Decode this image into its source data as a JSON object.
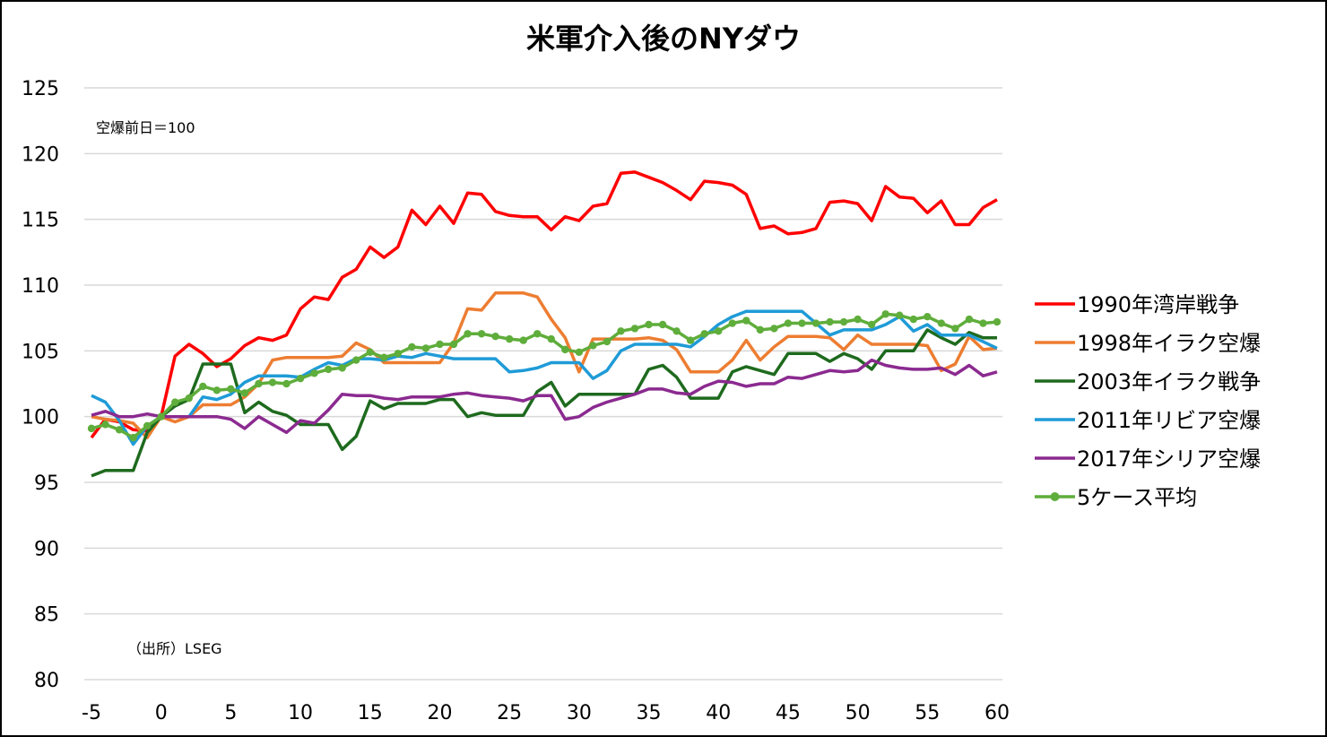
{
  "chart_data": {
    "type": "line",
    "title": "米軍介入後のNYダウ",
    "annotation_top": "空爆前日＝100",
    "annotation_bottom": "（出所）LSEG",
    "xlabel": "",
    "ylabel": "",
    "xlim": [
      -5,
      60
    ],
    "ylim": [
      80,
      125
    ],
    "x_ticks": [
      -5,
      0,
      5,
      10,
      15,
      20,
      25,
      30,
      35,
      40,
      45,
      50,
      55,
      60
    ],
    "y_ticks": [
      80,
      85,
      90,
      95,
      100,
      105,
      110,
      115,
      120,
      125
    ],
    "grid": "horizontal",
    "legend_position": "right",
    "x": [
      -5,
      -4,
      -3,
      -2,
      -1,
      0,
      1,
      2,
      3,
      4,
      5,
      6,
      7,
      8,
      9,
      10,
      11,
      12,
      13,
      14,
      15,
      16,
      17,
      18,
      19,
      20,
      21,
      22,
      23,
      24,
      25,
      26,
      27,
      28,
      29,
      30,
      31,
      32,
      33,
      34,
      35,
      36,
      37,
      38,
      39,
      40,
      41,
      42,
      43,
      44,
      45,
      46,
      47,
      48,
      49,
      50,
      51,
      52,
      53,
      54,
      55,
      56,
      57,
      58,
      59,
      60
    ],
    "series": [
      {
        "name": "1990年湾岸戦争",
        "color": "#ff0000",
        "marker": false,
        "values": [
          98.4,
          99.8,
          99.6,
          99.0,
          98.9,
          100.0,
          104.6,
          105.5,
          104.8,
          103.8,
          104.4,
          105.4,
          106.0,
          105.8,
          106.2,
          108.2,
          109.1,
          108.9,
          110.6,
          111.2,
          112.9,
          112.1,
          112.9,
          115.7,
          114.6,
          116.0,
          114.7,
          117.0,
          116.9,
          115.6,
          115.3,
          115.2,
          115.2,
          114.2,
          115.2,
          114.9,
          116.0,
          116.2,
          118.5,
          118.6,
          118.2,
          117.8,
          117.2,
          116.5,
          117.9,
          117.8,
          117.6,
          116.9,
          114.3,
          114.5,
          113.9,
          114.0,
          114.3,
          116.3,
          116.4,
          116.2,
          114.9,
          117.5,
          116.7,
          116.6,
          115.5,
          116.4,
          114.6,
          114.6,
          115.9,
          116.5
        ]
      },
      {
        "name": "1998年イラク空爆",
        "color": "#ed7d31",
        "marker": false,
        "values": [
          100.0,
          99.8,
          99.7,
          99.5,
          98.4,
          100.0,
          99.6,
          100.0,
          100.9,
          100.9,
          100.9,
          101.5,
          102.5,
          104.3,
          104.5,
          104.5,
          104.5,
          104.5,
          104.6,
          105.6,
          105.1,
          104.1,
          104.1,
          104.1,
          104.1,
          104.1,
          105.6,
          108.2,
          108.1,
          109.4,
          109.4,
          109.4,
          109.1,
          107.4,
          106.0,
          103.4,
          105.9,
          105.9,
          105.9,
          105.9,
          106.0,
          105.8,
          105.1,
          103.4,
          103.4,
          103.4,
          104.3,
          105.8,
          104.3,
          105.3,
          106.1,
          106.1,
          106.1,
          106.0,
          105.1,
          106.2,
          105.5,
          105.5,
          105.5,
          105.5,
          105.4,
          103.5,
          104.0,
          106.1,
          105.1,
          105.2
        ]
      },
      {
        "name": "2003年イラク戦争",
        "color": "#1e6a1e",
        "marker": false,
        "values": [
          95.5,
          95.9,
          95.9,
          95.9,
          98.8,
          100.0,
          100.8,
          101.3,
          104.0,
          104.0,
          104.0,
          100.3,
          101.1,
          100.4,
          100.1,
          99.4,
          99.4,
          99.4,
          97.5,
          98.5,
          101.2,
          100.6,
          101.0,
          101.0,
          101.0,
          101.3,
          101.3,
          100.0,
          100.3,
          100.1,
          100.1,
          100.1,
          101.9,
          102.6,
          100.8,
          101.7,
          101.7,
          101.7,
          101.7,
          101.7,
          103.6,
          103.9,
          103.0,
          101.4,
          101.4,
          101.4,
          103.4,
          103.8,
          103.5,
          103.2,
          104.8,
          104.8,
          104.8,
          104.2,
          104.8,
          104.4,
          103.6,
          105.0,
          105.0,
          105.0,
          106.6,
          106.0,
          105.5,
          106.4,
          106.0,
          106.0
        ]
      },
      {
        "name": "2011年リビア空爆",
        "color": "#1f9bd7",
        "marker": false,
        "values": [
          101.6,
          101.1,
          99.7,
          97.9,
          99.3,
          100.0,
          100.0,
          100.0,
          101.5,
          101.3,
          101.7,
          102.6,
          103.1,
          103.1,
          103.1,
          103.0,
          103.6,
          104.1,
          103.9,
          104.4,
          104.4,
          104.3,
          104.6,
          104.5,
          104.8,
          104.6,
          104.4,
          104.4,
          104.4,
          104.4,
          103.4,
          103.5,
          103.7,
          104.1,
          104.1,
          104.1,
          102.9,
          103.5,
          105.0,
          105.5,
          105.5,
          105.5,
          105.5,
          105.3,
          106.1,
          107.0,
          107.6,
          108.0,
          108.0,
          108.0,
          108.0,
          108.0,
          107.1,
          106.2,
          106.6,
          106.6,
          106.6,
          107.0,
          107.6,
          106.5,
          107.0,
          106.2,
          106.2,
          106.2,
          105.7,
          105.2
        ]
      },
      {
        "name": "2017年シリア空爆",
        "color": "#8b2a90",
        "marker": false,
        "values": [
          100.1,
          100.4,
          100.0,
          100.0,
          100.2,
          100.0,
          100.0,
          100.0,
          100.0,
          100.0,
          99.8,
          99.1,
          100.0,
          99.4,
          98.8,
          99.7,
          99.5,
          100.5,
          101.7,
          101.6,
          101.6,
          101.4,
          101.3,
          101.5,
          101.5,
          101.5,
          101.7,
          101.8,
          101.6,
          101.5,
          101.4,
          101.2,
          101.6,
          101.6,
          99.8,
          100.0,
          100.7,
          101.1,
          101.4,
          101.7,
          102.1,
          102.1,
          101.8,
          101.7,
          102.3,
          102.7,
          102.6,
          102.3,
          102.5,
          102.5,
          103.0,
          102.9,
          103.2,
          103.5,
          103.4,
          103.5,
          104.3,
          103.9,
          103.7,
          103.6,
          103.6,
          103.7,
          103.2,
          103.9,
          103.1,
          103.4
        ]
      },
      {
        "name": "5ケース平均",
        "color": "#5fad3b",
        "marker": true,
        "values": [
          99.1,
          99.4,
          99.0,
          98.4,
          99.3,
          100.0,
          101.1,
          101.4,
          102.3,
          102.0,
          102.1,
          101.8,
          102.5,
          102.6,
          102.5,
          102.9,
          103.3,
          103.6,
          103.7,
          104.3,
          104.9,
          104.5,
          104.8,
          105.3,
          105.2,
          105.5,
          105.5,
          106.3,
          106.3,
          106.1,
          105.9,
          105.8,
          106.3,
          105.9,
          105.1,
          104.9,
          105.4,
          105.7,
          106.5,
          106.7,
          107.0,
          107.0,
          106.5,
          105.8,
          106.3,
          106.5,
          107.1,
          107.3,
          106.6,
          106.7,
          107.1,
          107.1,
          107.1,
          107.2,
          107.2,
          107.4,
          107.0,
          107.8,
          107.7,
          107.4,
          107.6,
          107.1,
          106.7,
          107.4,
          107.1,
          107.2
        ]
      }
    ]
  }
}
